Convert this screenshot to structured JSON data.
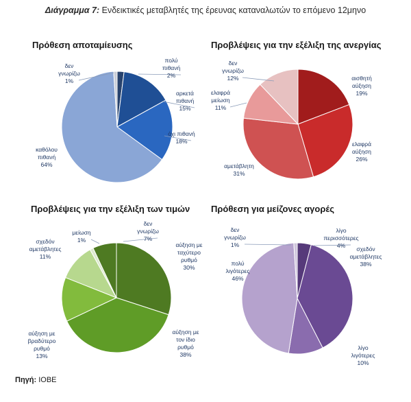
{
  "header": {
    "title_bold": "Διάγραμμα 7:",
    "title_rest": "Ενδεικτικές μεταβλητές της έρευνας καταναλωτών το επόμενο 12μηνο"
  },
  "source": {
    "label": "Πηγή:",
    "value": "ΙΟΒΕ"
  },
  "colors": {
    "savings": [
      "#28436e",
      "#1f4f95",
      "#2a67c0",
      "#8aa6d6",
      "#c9cdd6"
    ],
    "unemployment": [
      "#a11c1c",
      "#c92b2b",
      "#cf5252",
      "#e89a9a",
      "#e7c1c1"
    ],
    "prices": [
      "#4e7a22",
      "#5f9c27",
      "#82bb3d",
      "#b7d88e",
      "#dde9cf"
    ],
    "purchases": [
      "#563a7a",
      "#6a4a93",
      "#8a6cae",
      "#b5a2cd",
      "#cfc5dc"
    ]
  },
  "chart_data": [
    {
      "type": "pie",
      "title": "Πρόθεση αποταμίευσης",
      "categories": [
        "πολύ πιθανή",
        "αρκετά πιθανή",
        "όχι πιθανή",
        "καθόλου πιθανή",
        "δεν γνωρίζω"
      ],
      "values": [
        2,
        15,
        18,
        64,
        1
      ],
      "labels": [
        [
          "πολύ",
          "πιθανή",
          "2%"
        ],
        [
          "αρκετά",
          "πιθανή",
          "15%"
        ],
        [
          "όχι πιθανή",
          "18%"
        ],
        [
          "καθόλου",
          "πιθανή",
          "64%"
        ],
        [
          "δεν",
          "γνωρίζω",
          "1%"
        ]
      ]
    },
    {
      "type": "pie",
      "title": "Προβλέψεις για την εξέλιξη της ανεργίας",
      "categories": [
        "αισθητή αύξηση",
        "ελαφρά αύξηση",
        "αμετάβλητη",
        "ελαφρά μείωση",
        "δεν γνωρίζω"
      ],
      "values": [
        19,
        26,
        31,
        11,
        12
      ],
      "labels": [
        [
          "αισθητή",
          "αύξηση",
          "19%"
        ],
        [
          "ελαφρά",
          "αύξηση",
          "26%"
        ],
        [
          "αμετάβλητη",
          "31%"
        ],
        [
          "ελαφρά",
          "μείωση",
          "11%"
        ],
        [
          "δεν",
          "γνωρίζω",
          "12%"
        ]
      ]
    },
    {
      "type": "pie",
      "title": "Προβλέψεις για την εξέλιξη των τιμών",
      "categories": [
        "αύξηση με ταχύτερο ρυθμό",
        "αύξηση με τον ίδιο ρυθμό",
        "αύξηση με βραδύτερο ρυθμό",
        "σχεδόν αμετάβλητες",
        "μείωση",
        "δεν γνωρίζω"
      ],
      "values": [
        30,
        38,
        13,
        11,
        1,
        7
      ],
      "labels": [
        [
          "αύξηση με",
          "ταχύτερο",
          "ρυθμό",
          "30%"
        ],
        [
          "αύξηση με",
          "τον ίδιο",
          "ρυθμό",
          "38%"
        ],
        [
          "αύξηση με",
          "βραδύτερο",
          "ρυθμό",
          "13%"
        ],
        [
          "σχεδόν",
          "αμετάβλητες",
          "11%"
        ],
        [
          "μείωση",
          "1%"
        ],
        [
          "δεν",
          "γνωρίζω",
          "7%"
        ]
      ]
    },
    {
      "type": "pie",
      "title": "Πρόθεση για μείζονες αγορές",
      "categories": [
        "λίγο περισσότερες",
        "σχεδόν αμετάβλητες",
        "λίγο λιγότερες",
        "πολύ λιγότερες",
        "δεν γνωρίζω"
      ],
      "values": [
        4,
        38,
        10,
        46,
        1
      ],
      "labels": [
        [
          "λίγο",
          "περισσότερες",
          "4%"
        ],
        [
          "σχεδόν",
          "αμετάβλητες",
          "38%"
        ],
        [
          "λίγο",
          "λιγότερες",
          "10%"
        ],
        [
          "πολύ",
          "λιγότερες",
          "46%"
        ],
        [
          "δεν",
          "γνωρίζω",
          "1%"
        ]
      ]
    }
  ]
}
